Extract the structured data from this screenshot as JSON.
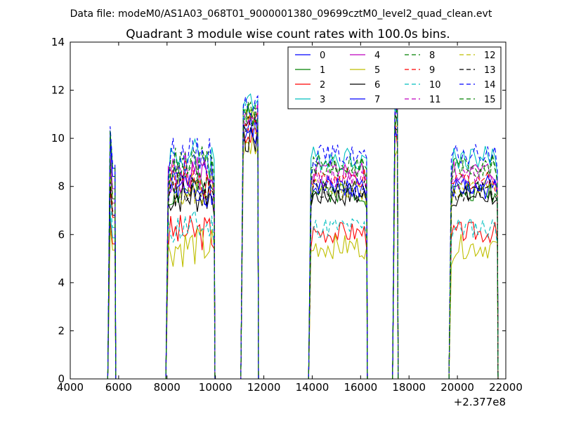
{
  "chart_data": {
    "type": "line",
    "suptitle": "Data file: modeM0/AS1A03_068T01_9000001380_09699cztM0_level2_quad_clean.evt",
    "title": "Quadrant 3 module wise count rates with 100.0s bins.",
    "xlabel": "",
    "ylabel": "",
    "x_offset_label": "+2.377e8",
    "xlim": [
      4000,
      22000
    ],
    "ylim": [
      0,
      14
    ],
    "xticks": [
      "4000",
      "6000",
      "8000",
      "10000",
      "12000",
      "14000",
      "16000",
      "18000",
      "20000",
      "22000"
    ],
    "yticks": [
      "0",
      "2",
      "4",
      "6",
      "8",
      "10",
      "12",
      "14"
    ],
    "legend_position": "top-right",
    "legend_columns": 4,
    "segments": [
      {
        "start": 5650,
        "end": 5850,
        "peak": 0.0
      },
      {
        "start": 8050,
        "end": 9950,
        "peak": 0.0
      },
      {
        "start": 11150,
        "end": 11750,
        "peak": 1.0
      },
      {
        "start": 13950,
        "end": 16250,
        "peak": 0.0
      },
      {
        "start": 17420,
        "end": 17520,
        "peak": 1.0
      },
      {
        "start": 19750,
        "end": 21650,
        "peak": 0.0
      }
    ],
    "series": [
      {
        "name": "0",
        "color": "#0000ff",
        "style": "solid",
        "level": 8.0,
        "start_level": 10.3,
        "spike": 11.0,
        "amp": 0.35,
        "seed": 1
      },
      {
        "name": "1",
        "color": "#008000",
        "style": "solid",
        "level": 7.8,
        "start_level": 8.8,
        "spike": 11.4,
        "amp": 0.35,
        "seed": 2
      },
      {
        "name": "2",
        "color": "#ff0000",
        "style": "solid",
        "level": 6.1,
        "start_level": 6.6,
        "spike": 10.8,
        "amp": 0.35,
        "seed": 3
      },
      {
        "name": "3",
        "color": "#00bfbf",
        "style": "solid",
        "level": 9.2,
        "start_level": 6.9,
        "spike": 12.0,
        "amp": 0.4,
        "seed": 4
      },
      {
        "name": "4",
        "color": "#bf00bf",
        "style": "solid",
        "level": 8.6,
        "start_level": 9.3,
        "spike": 11.6,
        "amp": 0.4,
        "seed": 5
      },
      {
        "name": "5",
        "color": "#bfbf00",
        "style": "solid",
        "level": 5.5,
        "start_level": 6.3,
        "spike": 10.3,
        "amp": 0.4,
        "seed": 6
      },
      {
        "name": "6",
        "color": "#000000",
        "style": "solid",
        "level": 7.6,
        "start_level": 8.0,
        "spike": 10.6,
        "amp": 0.35,
        "seed": 7
      },
      {
        "name": "7",
        "color": "#0000ff",
        "style": "solid",
        "level": 7.9,
        "start_level": 9.9,
        "spike": 10.9,
        "amp": 0.35,
        "seed": 8
      },
      {
        "name": "8",
        "color": "#008000",
        "style": "dashed",
        "level": 8.8,
        "start_level": 9.0,
        "spike": 11.7,
        "amp": 0.35,
        "seed": 9
      },
      {
        "name": "9",
        "color": "#ff0000",
        "style": "dashed",
        "level": 8.3,
        "start_level": 7.9,
        "spike": 11.2,
        "amp": 0.35,
        "seed": 10
      },
      {
        "name": "10",
        "color": "#00bfbf",
        "style": "dashed",
        "level": 6.3,
        "start_level": 7.4,
        "spike": 11.5,
        "amp": 0.35,
        "seed": 11
      },
      {
        "name": "11",
        "color": "#bf00bf",
        "style": "dashed",
        "level": 8.4,
        "start_level": 8.6,
        "spike": 11.8,
        "amp": 0.35,
        "seed": 12
      },
      {
        "name": "12",
        "color": "#bfbf00",
        "style": "dashed",
        "level": 7.9,
        "start_level": 8.5,
        "spike": 11.3,
        "amp": 0.35,
        "seed": 13
      },
      {
        "name": "13",
        "color": "#000000",
        "style": "dashed",
        "level": 7.8,
        "start_level": 8.2,
        "spike": 11.0,
        "amp": 0.35,
        "seed": 14
      },
      {
        "name": "14",
        "color": "#0000ff",
        "style": "dashed",
        "level": 9.3,
        "start_level": 10.5,
        "spike": 11.9,
        "amp": 0.35,
        "seed": 15
      },
      {
        "name": "15",
        "color": "#008000",
        "style": "dashed",
        "level": 8.9,
        "start_level": 10.3,
        "spike": 11.6,
        "amp": 0.35,
        "seed": 16
      }
    ]
  }
}
